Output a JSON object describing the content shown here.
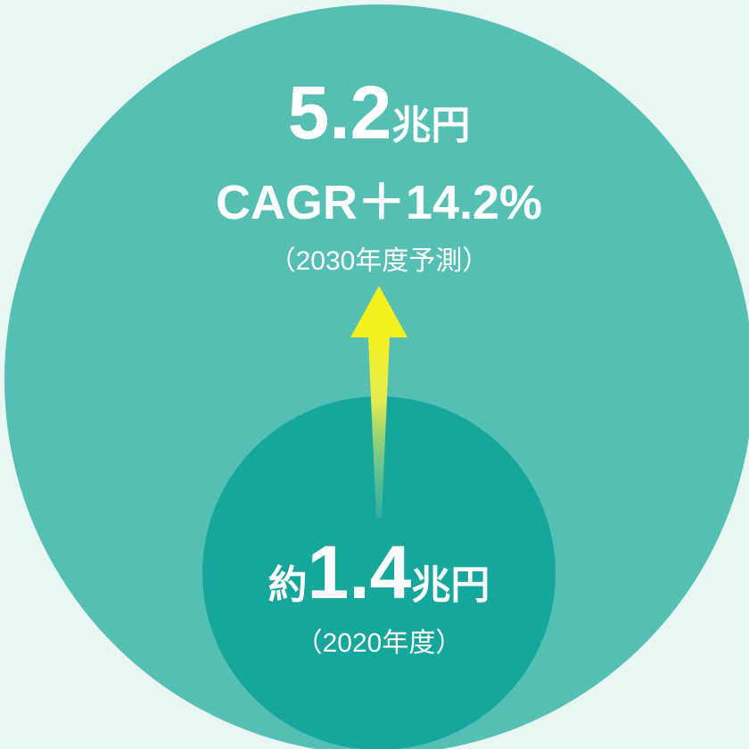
{
  "outer": {
    "value": "5.2",
    "unit": "兆円",
    "growth": "CAGR＋14.2%",
    "note": "（2030年度予測）"
  },
  "inner": {
    "prefix": "約",
    "value": "1.4",
    "unit": "兆円",
    "note": "（2020年度）"
  }
}
